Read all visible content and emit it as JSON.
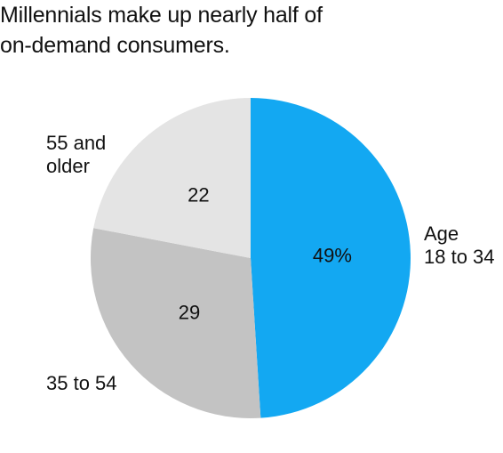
{
  "chart_data": {
    "type": "pie",
    "title": [
      "Millennials make up nearly half of",
      "on-demand consumers."
    ],
    "slices": [
      {
        "label": [
          "Age",
          "18 to 34"
        ],
        "value": 49,
        "value_label": "49%",
        "color": "#13a8f2"
      },
      {
        "label": [
          "35 to 54"
        ],
        "value": 29,
        "value_label": "29",
        "color": "#c3c3c3"
      },
      {
        "label": [
          "55 and",
          "older"
        ],
        "value": 22,
        "value_label": "22",
        "color": "#e4e4e4"
      }
    ]
  }
}
